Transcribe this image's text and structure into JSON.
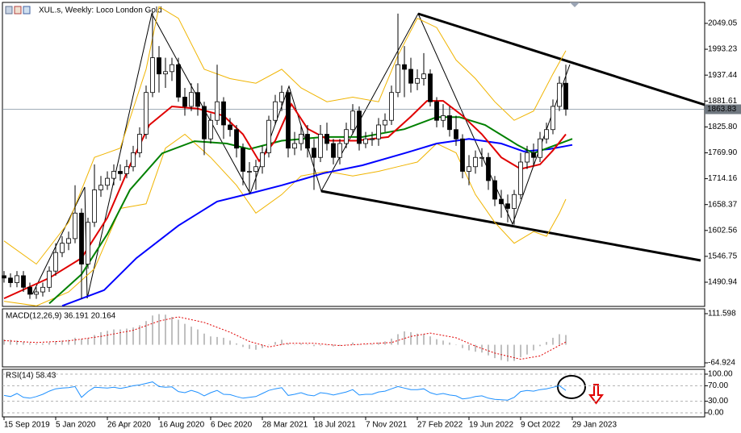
{
  "chart_data": {
    "type": "candlestick",
    "title": "XUL.s, Weekly:  Loco London Gold",
    "x": [
      0,
      2,
      4,
      6,
      8,
      10,
      12,
      14,
      16,
      18,
      20,
      22,
      24,
      26,
      28,
      30,
      32,
      34,
      36,
      38,
      40,
      42,
      44,
      46,
      48,
      50,
      52,
      54,
      56,
      58,
      60,
      62,
      64,
      66,
      68,
      70,
      72,
      74,
      76,
      78,
      80,
      82,
      84,
      86,
      88,
      90,
      92,
      94,
      96,
      98,
      100,
      102,
      104,
      106,
      108,
      110,
      112,
      114,
      116,
      118,
      120,
      122,
      124,
      126,
      128,
      130,
      132,
      134,
      136,
      138,
      140,
      142,
      144,
      146,
      148,
      150,
      152,
      154,
      156,
      158,
      160,
      162,
      164,
      166,
      168,
      170,
      172,
      174
    ],
    "open": [
      1505,
      1500,
      1490,
      1505,
      1480,
      1465,
      1470,
      1480,
      1515,
      1555,
      1575,
      1585,
      1640,
      1530,
      1620,
      1690,
      1700,
      1715,
      1730,
      1725,
      1740,
      1770,
      1810,
      1900,
      1975,
      1940,
      1945,
      1960,
      1890,
      1870,
      1900,
      1870,
      1800,
      1840,
      1880,
      1830,
      1820,
      1780,
      1730,
      1730,
      1740,
      1770,
      1840,
      1880,
      1900,
      1780,
      1790,
      1810,
      1780,
      1760,
      1810,
      1790,
      1760,
      1790,
      1820,
      1860,
      1790,
      1800,
      1800,
      1830,
      1840,
      1900,
      1960,
      1950,
      1920,
      1930,
      1940,
      1880,
      1840,
      1850,
      1820,
      1800,
      1730,
      1740,
      1760,
      1760,
      1710,
      1670,
      1660,
      1650,
      1680,
      1750,
      1770,
      1760,
      1800,
      1820,
      1870,
      1920
    ],
    "high": [
      1515,
      1510,
      1515,
      1515,
      1490,
      1480,
      1490,
      1525,
      1575,
      1590,
      1600,
      1700,
      1650,
      1630,
      1745,
      1720,
      1730,
      1745,
      1745,
      1755,
      1785,
      1825,
      1915,
      2075,
      2000,
      1975,
      1975,
      1975,
      1910,
      1920,
      1920,
      1880,
      1855,
      1960,
      1890,
      1845,
      1830,
      1790,
      1750,
      1755,
      1785,
      1850,
      1895,
      1915,
      1905,
      1815,
      1830,
      1830,
      1800,
      1830,
      1835,
      1800,
      1800,
      1835,
      1875,
      1870,
      1815,
      1815,
      1845,
      1855,
      1915,
      2070,
      2000,
      1975,
      1950,
      1985,
      1950,
      1890,
      1875,
      1870,
      1850,
      1810,
      1765,
      1775,
      1780,
      1770,
      1720,
      1690,
      1680,
      1690,
      1770,
      1785,
      1790,
      1815,
      1835,
      1885,
      1935,
      1960
    ],
    "low": [
      1490,
      1480,
      1480,
      1470,
      1455,
      1455,
      1460,
      1470,
      1505,
      1545,
      1560,
      1575,
      1455,
      1520,
      1610,
      1675,
      1690,
      1700,
      1710,
      1715,
      1730,
      1760,
      1800,
      1890,
      1900,
      1910,
      1925,
      1880,
      1850,
      1860,
      1850,
      1765,
      1790,
      1830,
      1800,
      1805,
      1760,
      1700,
      1680,
      1690,
      1725,
      1760,
      1830,
      1860,
      1760,
      1765,
      1775,
      1760,
      1690,
      1750,
      1775,
      1745,
      1745,
      1780,
      1810,
      1775,
      1780,
      1785,
      1785,
      1815,
      1830,
      1890,
      1890,
      1900,
      1905,
      1915,
      1870,
      1825,
      1825,
      1805,
      1785,
      1715,
      1700,
      1725,
      1740,
      1690,
      1655,
      1630,
      1620,
      1615,
      1670,
      1735,
      1740,
      1750,
      1790,
      1810,
      1860,
      1850
    ],
    "close": [
      1500,
      1490,
      1505,
      1480,
      1465,
      1470,
      1480,
      1515,
      1555,
      1575,
      1585,
      1640,
      1530,
      1620,
      1690,
      1700,
      1715,
      1730,
      1725,
      1740,
      1770,
      1810,
      1900,
      1975,
      1940,
      1945,
      1960,
      1890,
      1870,
      1900,
      1870,
      1800,
      1840,
      1880,
      1830,
      1820,
      1780,
      1730,
      1730,
      1740,
      1770,
      1840,
      1880,
      1900,
      1780,
      1790,
      1810,
      1780,
      1760,
      1810,
      1790,
      1760,
      1790,
      1820,
      1860,
      1790,
      1800,
      1800,
      1830,
      1840,
      1900,
      1960,
      1950,
      1920,
      1930,
      1940,
      1880,
      1840,
      1850,
      1820,
      1800,
      1730,
      1740,
      1760,
      1760,
      1710,
      1670,
      1660,
      1650,
      1680,
      1750,
      1770,
      1760,
      1800,
      1820,
      1870,
      1920,
      1864
    ],
    "up_color": "#ffffff",
    "down_color": "#000000",
    "xlim": [
      -0.5,
      217
    ],
    "xticks": [
      {
        "value": 0,
        "label": "15 Sep 2019"
      },
      {
        "value": 16,
        "label": "5 Jan 2020"
      },
      {
        "value": 32,
        "label": "26 Apr 2020"
      },
      {
        "value": 48,
        "label": "16 Aug 2020"
      },
      {
        "value": 64,
        "label": "6 Dec 2020"
      },
      {
        "value": 80,
        "label": "28 Mar 2021"
      },
      {
        "value": 96,
        "label": "18 Jul 2021"
      },
      {
        "value": 112,
        "label": "7 Nov 2021"
      },
      {
        "value": 128,
        "label": "27 Feb 2022"
      },
      {
        "value": 144,
        "label": "19 Jun 2022"
      },
      {
        "value": 160,
        "label": "9 Oct 2022"
      },
      {
        "value": 176,
        "label": "29 Jan 2023"
      }
    ],
    "ylim": [
      1438.8,
      2094.2
    ],
    "yticks": [
      2049.05,
      1993.23,
      1937.44,
      1881.61,
      {
        "value": 1825.8,
        "label": "1825.80"
      },
      {
        "value": 1769.9,
        "label": "1769.90"
      },
      1714.16,
      1658.37,
      1602.56,
      1546.75,
      1490.94
    ],
    "current_price": 1863.83,
    "lines": [
      {
        "color": "#f0b400",
        "width": 1,
        "x": [
          0,
          10,
          20,
          28,
          36,
          44,
          48,
          54,
          62,
          70,
          78,
          86,
          92,
          100,
          108,
          116,
          122,
          128,
          134,
          140,
          146,
          152,
          158,
          164,
          170,
          174
        ],
        "values": [
          1580,
          1530,
          1620,
          1760,
          1780,
          1950,
          2085,
          2060,
          1950,
          1930,
          1920,
          1950,
          1910,
          1880,
          1890,
          1880,
          1980,
          2060,
          2040,
          1970,
          1930,
          1880,
          1840,
          1860,
          1940,
          1990
        ]
      },
      {
        "color": "#f0b400",
        "width": 1,
        "x": [
          0,
          10,
          20,
          28,
          36,
          44,
          50,
          56,
          64,
          72,
          78,
          86,
          92,
          100,
          108,
          116,
          122,
          128,
          134,
          140,
          146,
          152,
          158,
          164,
          168,
          172,
          174
        ],
        "values": [
          1450,
          1440,
          1470,
          1520,
          1650,
          1660,
          1780,
          1810,
          1760,
          1700,
          1640,
          1680,
          1720,
          1730,
          1720,
          1730,
          1740,
          1750,
          1790,
          1770,
          1680,
          1620,
          1575,
          1600,
          1590,
          1640,
          1670
        ]
      },
      {
        "color": "#0000ff",
        "width": 2,
        "x": [
          18,
          31,
          41,
          54,
          66,
          76,
          86,
          99,
          111,
          124,
          134,
          144,
          154,
          161,
          169,
          176
        ],
        "values": [
          1440,
          1474,
          1543,
          1613,
          1665,
          1682,
          1700,
          1726,
          1743,
          1769,
          1790,
          1800,
          1790,
          1773,
          1778,
          1787
        ]
      },
      {
        "color": "#008000",
        "width": 2,
        "x": [
          14,
          24,
          32,
          39,
          49,
          59,
          69,
          76,
          86,
          99,
          111,
          124,
          134,
          141,
          149,
          159,
          164,
          171,
          176
        ],
        "values": [
          1445,
          1508,
          1595,
          1690,
          1769,
          1795,
          1790,
          1778,
          1796,
          1804,
          1804,
          1821,
          1847,
          1847,
          1830,
          1787,
          1769,
          1787,
          1800
        ]
      },
      {
        "color": "#e00000",
        "width": 2,
        "x": [
          0,
          14,
          24,
          32,
          39,
          45,
          52,
          60,
          68,
          74,
          79,
          84,
          89,
          94,
          101,
          109,
          119,
          126,
          131,
          136,
          142,
          148,
          154,
          160,
          166,
          170,
          174
        ],
        "values": [
          1456,
          1500,
          1543,
          1630,
          1743,
          1830,
          1870,
          1865,
          1850,
          1810,
          1752,
          1796,
          1875,
          1822,
          1796,
          1796,
          1804,
          1848,
          1882,
          1882,
          1850,
          1810,
          1760,
          1735,
          1745,
          1775,
          1810
        ]
      }
    ],
    "macd": {
      "label": "MACD(12,26,9) 36.191 20.164",
      "histogram": [
        20,
        18,
        15,
        10,
        6,
        4,
        5,
        8,
        12,
        15,
        18,
        25,
        20,
        22,
        35,
        45,
        50,
        55,
        55,
        58,
        62,
        70,
        85,
        105,
        110,
        108,
        100,
        90,
        75,
        65,
        55,
        40,
        30,
        28,
        25,
        15,
        5,
        -8,
        -15,
        -18,
        -12,
        0,
        10,
        18,
        5,
        0,
        5,
        2,
        -5,
        -3,
        -2,
        -6,
        -4,
        0,
        8,
        2,
        2,
        3,
        8,
        12,
        22,
        38,
        48,
        45,
        40,
        38,
        30,
        20,
        15,
        8,
        0,
        -12,
        -20,
        -25,
        -28,
        -38,
        -48,
        -55,
        -60,
        -58,
        -45,
        -35,
        -20,
        -5,
        10,
        25,
        38,
        35
      ],
      "color": "#c0c0c0",
      "signal": {
        "color": "#e00000",
        "x": [
          0,
          10,
          20,
          30,
          40,
          48,
          54,
          62,
          70,
          76,
          82,
          88,
          96,
          104,
          112,
          120,
          126,
          132,
          140,
          146,
          152,
          160,
          166,
          170,
          174
        ],
        "values": [
          15,
          8,
          14,
          30,
          52,
          85,
          100,
          80,
          45,
          12,
          -8,
          5,
          5,
          -3,
          3,
          8,
          30,
          42,
          25,
          -5,
          -30,
          -52,
          -40,
          -15,
          10
        ]
      },
      "ylim": [
        -79.39,
        128.96
      ],
      "yticks": [
        111.598,
        -64.924
      ]
    },
    "rsi": {
      "label": "RSI(14) 58.43",
      "values": [
        45,
        42,
        50,
        40,
        38,
        42,
        48,
        56,
        62,
        64,
        65,
        68,
        40,
        55,
        66,
        65,
        64,
        66,
        63,
        66,
        70,
        72,
        76,
        80,
        68,
        66,
        67,
        55,
        52,
        58,
        53,
        44,
        52,
        58,
        48,
        47,
        42,
        38,
        40,
        42,
        50,
        58,
        62,
        65,
        45,
        48,
        52,
        46,
        44,
        52,
        50,
        46,
        50,
        54,
        60,
        46,
        48,
        48,
        54,
        56,
        62,
        68,
        64,
        60,
        60,
        62,
        52,
        47,
        50,
        46,
        44,
        36,
        38,
        42,
        44,
        38,
        35,
        34,
        33,
        40,
        55,
        58,
        56,
        60,
        62,
        66,
        70,
        58
      ],
      "color": "#1e90ff",
      "ylim": [
        -10.4,
        112.5
      ],
      "yticks": [
        {
          "value": 100,
          "label": "100.00"
        },
        {
          "value": 70,
          "label": "70.00"
        },
        {
          "value": 30,
          "label": "30.00"
        },
        {
          "value": 0,
          "label": "0.00"
        }
      ]
    }
  }
}
